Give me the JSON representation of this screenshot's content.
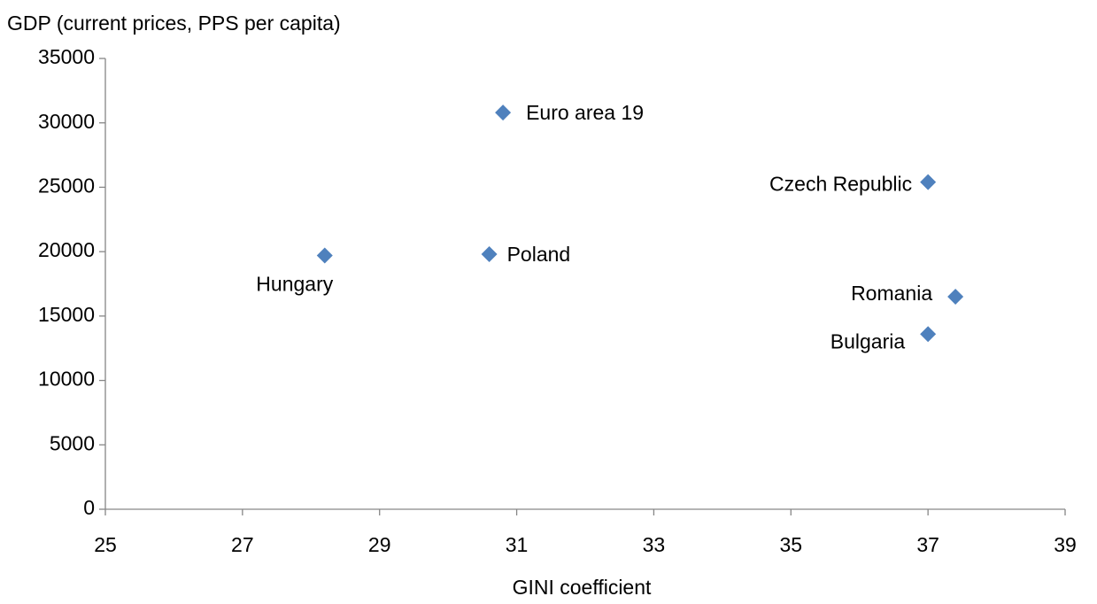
{
  "chart_data": {
    "type": "scatter",
    "y_axis_title": "GDP (current prices, PPS per capita)",
    "x_axis_title": "GINI coefficient",
    "series": [
      {
        "name": null,
        "color": "#4f81bd",
        "labels": [
          "Euro area 19",
          "Czech Republic",
          "Hungary",
          "Poland",
          "Romania",
          "Bulgaria"
        ],
        "x": [
          30.8,
          37.0,
          28.2,
          30.6,
          37.4,
          37.0
        ],
        "values": [
          30800,
          25400,
          19700,
          19800,
          16500,
          13600
        ]
      }
    ],
    "xlim": [
      25,
      39
    ],
    "xticks": [
      25,
      27,
      29,
      31,
      33,
      35,
      37,
      39
    ],
    "ylim": [
      0,
      35000
    ],
    "yticks": [
      0,
      5000,
      10000,
      15000,
      20000,
      25000,
      30000,
      35000
    ],
    "grid": false
  }
}
